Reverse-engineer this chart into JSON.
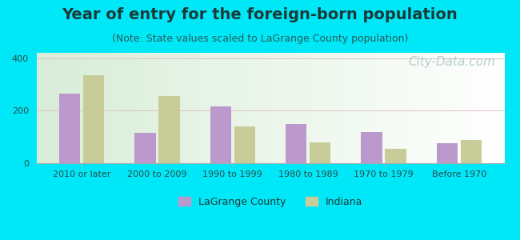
{
  "title": "Year of entry for the foreign-born population",
  "subtitle": "(Note: State values scaled to LaGrange County population)",
  "categories": [
    "2010 or later",
    "2000 to 2009",
    "1990 to 1999",
    "1980 to 1989",
    "1970 to 1979",
    "Before 1970"
  ],
  "lagrange_values": [
    265,
    115,
    215,
    150,
    120,
    75
  ],
  "indiana_values": [
    335,
    255,
    140,
    80,
    55,
    88
  ],
  "lagrange_color": "#bb99cc",
  "indiana_color": "#c8cc99",
  "background_outer": "#00e8f8",
  "ylim": [
    0,
    420
  ],
  "yticks": [
    0,
    200,
    400
  ],
  "bar_width": 0.28,
  "title_fontsize": 14,
  "subtitle_fontsize": 9,
  "tick_fontsize": 8,
  "legend_fontsize": 9,
  "watermark_text": "City-Data.com",
  "watermark_color": "#a0bec0",
  "watermark_fontsize": 11,
  "title_color": "#1a3a3a",
  "subtitle_color": "#2a5a5a"
}
